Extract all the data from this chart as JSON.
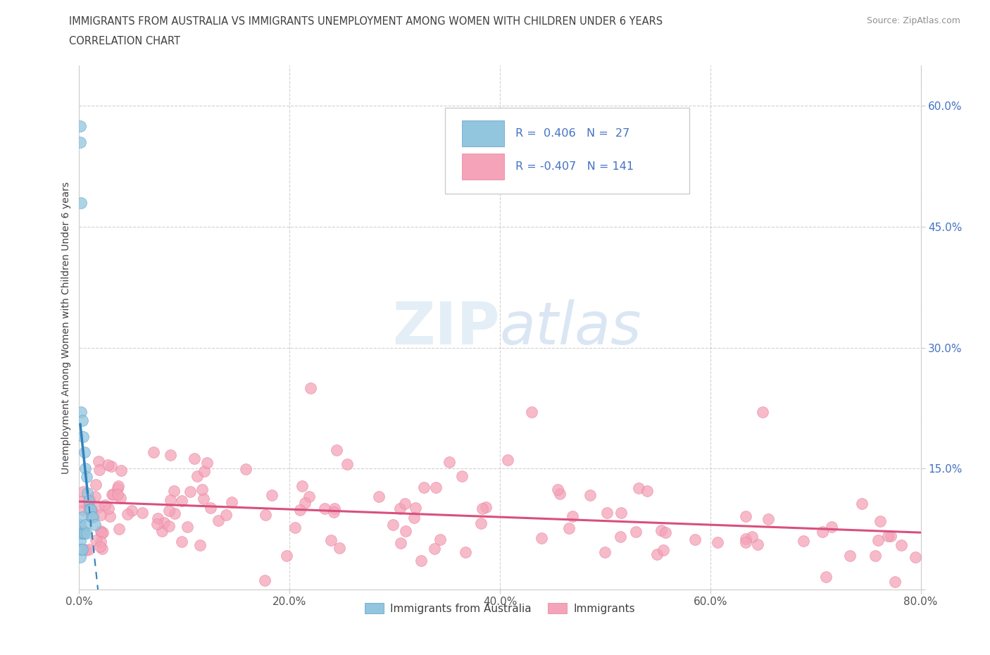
{
  "title_line1": "IMMIGRANTS FROM AUSTRALIA VS IMMIGRANTS UNEMPLOYMENT AMONG WOMEN WITH CHILDREN UNDER 6 YEARS",
  "title_line2": "CORRELATION CHART",
  "source": "Source: ZipAtlas.com",
  "ylabel": "Unemployment Among Women with Children Under 6 years",
  "xlim": [
    0.0,
    0.8
  ],
  "ylim": [
    0.0,
    0.65
  ],
  "xticks": [
    0.0,
    0.2,
    0.4,
    0.6,
    0.8
  ],
  "yticks": [
    0.0,
    0.15,
    0.3,
    0.45,
    0.6
  ],
  "xtick_labels": [
    "0.0%",
    "20.0%",
    "40.0%",
    "60.0%",
    "80.0%"
  ],
  "ytick_labels_right": [
    "",
    "15.0%",
    "30.0%",
    "45.0%",
    "60.0%"
  ],
  "background_color": "#ffffff",
  "grid_color": "#cccccc",
  "title_color": "#404040",
  "source_color": "#909090",
  "blue_color": "#92c5de",
  "blue_edge_color": "#5b9ec9",
  "blue_line_color": "#3182bd",
  "pink_color": "#f4a3b8",
  "pink_edge_color": "#e87fa0",
  "pink_line_color": "#d94f7e",
  "tick_color": "#4472c4",
  "legend_label1": "Immigrants from Australia",
  "legend_label2": "Immigrants",
  "watermark_zip": "ZIP",
  "watermark_atlas": "atlas",
  "blue_R": 0.406,
  "blue_N": 27,
  "pink_R": -0.407,
  "pink_N": 141
}
